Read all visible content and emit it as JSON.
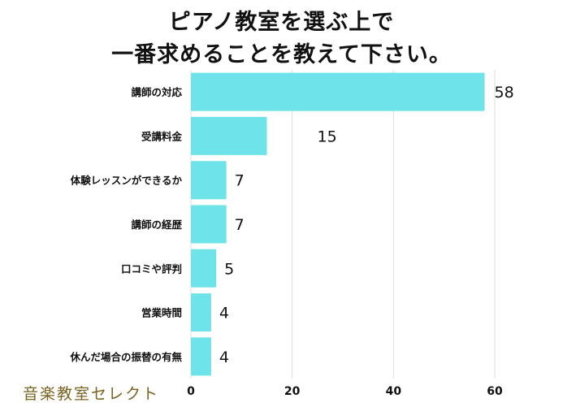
{
  "chart_data": {
    "type": "bar",
    "orientation": "horizontal",
    "title_lines": [
      "ピアノ教室を選ぶ上で",
      "一番求めることを教えて下さい。"
    ],
    "categories": [
      "講師の対応",
      "受講料金",
      "体験レッスンができるか",
      "講師の経歴",
      "口コミや評判",
      "営業時間",
      "休んだ場合の振替の有無"
    ],
    "values": [
      58,
      15,
      7,
      7,
      5,
      4,
      4
    ],
    "value_labels": [
      "58",
      "15",
      "7",
      "7",
      "5",
      "4",
      "4"
    ],
    "xlim": [
      0,
      60
    ],
    "xticks": [
      0,
      20,
      40,
      60
    ],
    "xtick_labels": [
      "0",
      "20",
      "40",
      "60"
    ],
    "grid": true,
    "bar_color": "#6ee3ea",
    "grid_color": "#dddddd",
    "xlabel": "",
    "ylabel": ""
  },
  "brand": {
    "logo_text": "音楽教室セレクト",
    "logo_color": "#7a6320"
  }
}
